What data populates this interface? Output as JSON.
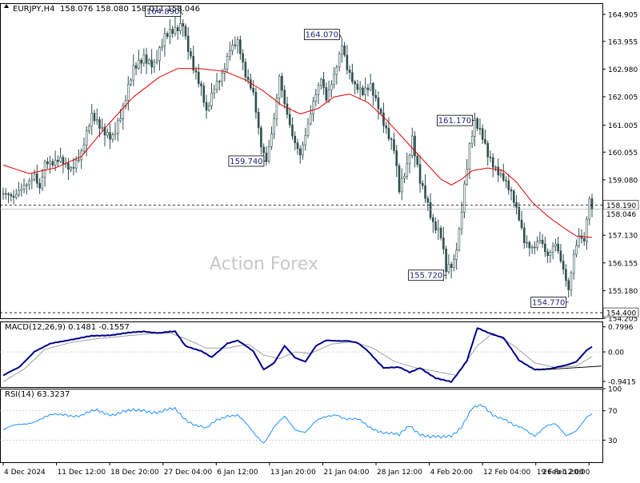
{
  "header": {
    "symbol": "EURJPY,H4",
    "ohlc": "158.076 158.080 158.011 158.046"
  },
  "watermark": "Action Forex",
  "colors": {
    "background": "#ffffff",
    "candle": "#2f4f4f",
    "moving_average": "#e00000",
    "macd_line": "#00008b",
    "macd_signal": "#a0a0a0",
    "rsi_line": "#1e90ff",
    "price_label_bg": "#ffffff",
    "annotation_text": "#1a237e"
  },
  "chart_data": [
    {
      "type": "candlestick",
      "name": "price",
      "y_axis_ticks": [
        "164.905",
        "163.955",
        "162.980",
        "162.005",
        "161.005",
        "160.055",
        "159.080",
        "158.046",
        "157.130",
        "156.155",
        "155.180",
        "154.205"
      ],
      "ylim": [
        154.205,
        165.3
      ],
      "x_ticks": [
        "4 Dec 2024",
        "11 Dec 12:00",
        "18 Dec 20:00",
        "27 Dec 04:00",
        "6 Jan 12:00",
        "13 Jan 20:00",
        "21 Jan 04:00",
        "28 Jan 12:00",
        "4 Feb 20:00",
        "12 Feb 04:00",
        "19 Feb 12:00",
        "26 Feb 20:00"
      ],
      "price_path": [
        [
          0,
          158.6
        ],
        [
          4,
          158.3
        ],
        [
          8,
          158.9
        ],
        [
          12,
          159.4
        ],
        [
          14,
          158.8
        ],
        [
          16,
          159.6
        ],
        [
          19,
          159.5
        ],
        [
          22,
          159.8
        ],
        [
          26,
          159.6
        ],
        [
          30,
          160.0
        ],
        [
          34,
          161.2
        ],
        [
          38,
          160.9
        ],
        [
          42,
          160.7
        ],
        [
          46,
          161.5
        ],
        [
          50,
          162.9
        ],
        [
          54,
          163.5
        ],
        [
          58,
          163.2
        ],
        [
          62,
          164.0
        ],
        [
          66,
          164.3
        ],
        [
          69,
          164.7
        ],
        [
          70,
          164.2
        ],
        [
          73,
          163.1
        ],
        [
          76,
          162.2
        ],
        [
          78,
          161.3
        ],
        [
          81,
          162.3
        ],
        [
          84,
          162.9
        ],
        [
          87,
          163.8
        ],
        [
          90,
          163.9
        ],
        [
          93,
          162.6
        ],
        [
          96,
          162.1
        ],
        [
          99,
          160.4
        ],
        [
          101,
          159.9
        ],
        [
          104,
          161.2
        ],
        [
          106,
          162.6
        ],
        [
          108,
          161.6
        ],
        [
          111,
          160.6
        ],
        [
          114,
          160.1
        ],
        [
          116,
          160.8
        ],
        [
          119,
          161.8
        ],
        [
          122,
          162.5
        ],
        [
          124,
          161.8
        ],
        [
          127,
          162.8
        ],
        [
          130,
          164.0
        ],
        [
          132,
          163.1
        ],
        [
          135,
          162.3
        ],
        [
          138,
          162.0
        ],
        [
          141,
          162.4
        ],
        [
          144,
          161.8
        ],
        [
          147,
          160.9
        ],
        [
          150,
          160.1
        ],
        [
          152,
          158.6
        ],
        [
          155,
          159.5
        ],
        [
          157,
          160.6
        ],
        [
          160,
          159.2
        ],
        [
          162,
          158.6
        ],
        [
          165,
          157.4
        ],
        [
          168,
          157.0
        ],
        [
          170,
          155.9
        ],
        [
          173,
          156.3
        ],
        [
          175,
          157.4
        ],
        [
          177,
          158.9
        ],
        [
          179,
          160.2
        ],
        [
          181,
          161.0
        ],
        [
          184,
          160.5
        ],
        [
          186,
          160.0
        ],
        [
          189,
          159.6
        ],
        [
          192,
          159.2
        ],
        [
          195,
          158.5
        ],
        [
          198,
          157.6
        ],
        [
          200,
          156.9
        ],
        [
          203,
          156.8
        ],
        [
          206,
          157.1
        ],
        [
          209,
          156.3
        ],
        [
          212,
          156.7
        ],
        [
          215,
          155.9
        ],
        [
          217,
          155.3
        ],
        [
          219,
          156.6
        ],
        [
          221,
          157.2
        ],
        [
          223,
          156.9
        ],
        [
          225,
          158.3
        ],
        [
          226,
          158.05
        ]
      ],
      "moving_average_path": [
        [
          0,
          159.6
        ],
        [
          10,
          159.3
        ],
        [
          20,
          159.5
        ],
        [
          30,
          159.9
        ],
        [
          40,
          161.0
        ],
        [
          50,
          162.0
        ],
        [
          60,
          162.7
        ],
        [
          67,
          163.0
        ],
        [
          75,
          163.0
        ],
        [
          85,
          162.9
        ],
        [
          93,
          162.6
        ],
        [
          100,
          162.2
        ],
        [
          107,
          161.7
        ],
        [
          114,
          161.4
        ],
        [
          121,
          161.6
        ],
        [
          127,
          162.0
        ],
        [
          133,
          162.1
        ],
        [
          140,
          161.8
        ],
        [
          147,
          161.2
        ],
        [
          152,
          160.7
        ],
        [
          158,
          160.1
        ],
        [
          163,
          159.6
        ],
        [
          168,
          159.1
        ],
        [
          172,
          158.9
        ],
        [
          176,
          159.1
        ],
        [
          180,
          159.4
        ],
        [
          186,
          159.5
        ],
        [
          192,
          159.4
        ],
        [
          197,
          159.0
        ],
        [
          203,
          158.3
        ],
        [
          209,
          157.8
        ],
        [
          215,
          157.4
        ],
        [
          220,
          157.1
        ],
        [
          226,
          157.05
        ]
      ],
      "annotations": [
        {
          "label": "164.890",
          "index": 69,
          "price": 164.89
        },
        {
          "label": "159.740",
          "index": 101,
          "price": 159.74
        },
        {
          "label": "164.070",
          "index": 130,
          "price": 164.07
        },
        {
          "label": "155.720",
          "index": 170,
          "price": 155.72
        },
        {
          "label": "161.170",
          "index": 181,
          "price": 161.17
        },
        {
          "label": "154.770",
          "index": 217,
          "price": 154.77
        }
      ],
      "horizontal_lines": [
        {
          "label": "158.190",
          "price": 158.19,
          "style": "dashed"
        },
        {
          "label": "154.400",
          "price": 154.4,
          "style": "dashed"
        }
      ],
      "current_price_label": "158.046",
      "current_price": 158.046,
      "bars": 226
    },
    {
      "type": "line",
      "name": "macd",
      "title": "MACD(12,26,9) 0.1481 -0.1557",
      "y_axis_ticks": [
        "0.7996",
        "0.00",
        "-0.9415"
      ],
      "ylim": [
        -1.12,
        0.97
      ],
      "macd_path": [
        [
          0,
          -0.75
        ],
        [
          6,
          -0.5
        ],
        [
          12,
          0.02
        ],
        [
          18,
          0.25
        ],
        [
          26,
          0.4
        ],
        [
          34,
          0.5
        ],
        [
          42,
          0.55
        ],
        [
          48,
          0.6
        ],
        [
          54,
          0.66
        ],
        [
          60,
          0.6
        ],
        [
          66,
          0.65
        ],
        [
          70,
          0.2
        ],
        [
          76,
          0.02
        ],
        [
          80,
          -0.18
        ],
        [
          86,
          0.28
        ],
        [
          90,
          0.36
        ],
        [
          96,
          0.02
        ],
        [
          100,
          -0.55
        ],
        [
          104,
          -0.35
        ],
        [
          108,
          0.18
        ],
        [
          112,
          -0.18
        ],
        [
          116,
          -0.3
        ],
        [
          120,
          0.18
        ],
        [
          124,
          0.36
        ],
        [
          128,
          0.36
        ],
        [
          132,
          0.36
        ],
        [
          136,
          0.28
        ],
        [
          140,
          0.02
        ],
        [
          146,
          -0.5
        ],
        [
          152,
          -0.5
        ],
        [
          156,
          -0.65
        ],
        [
          160,
          -0.5
        ],
        [
          166,
          -0.85
        ],
        [
          172,
          -0.95
        ],
        [
          178,
          -0.28
        ],
        [
          182,
          0.75
        ],
        [
          186,
          0.62
        ],
        [
          192,
          0.46
        ],
        [
          198,
          -0.28
        ],
        [
          204,
          -0.55
        ],
        [
          210,
          -0.55
        ],
        [
          216,
          -0.42
        ],
        [
          220,
          -0.3
        ],
        [
          224,
          0.05
        ],
        [
          226,
          0.15
        ]
      ],
      "signal_path": [
        [
          0,
          -0.95
        ],
        [
          8,
          -0.55
        ],
        [
          16,
          0.08
        ],
        [
          26,
          0.3
        ],
        [
          36,
          0.42
        ],
        [
          46,
          0.5
        ],
        [
          56,
          0.58
        ],
        [
          64,
          0.6
        ],
        [
          70,
          0.42
        ],
        [
          78,
          0.12
        ],
        [
          86,
          0.12
        ],
        [
          94,
          0.25
        ],
        [
          100,
          -0.1
        ],
        [
          106,
          -0.22
        ],
        [
          112,
          0.0
        ],
        [
          118,
          -0.05
        ],
        [
          126,
          0.25
        ],
        [
          134,
          0.32
        ],
        [
          142,
          0.12
        ],
        [
          150,
          -0.3
        ],
        [
          158,
          -0.5
        ],
        [
          166,
          -0.62
        ],
        [
          174,
          -0.75
        ],
        [
          182,
          0.2
        ],
        [
          188,
          0.6
        ],
        [
          196,
          0.2
        ],
        [
          204,
          -0.35
        ],
        [
          212,
          -0.5
        ],
        [
          220,
          -0.45
        ],
        [
          226,
          -0.15
        ]
      ],
      "trendline_path": [
        [
          205,
          -0.58
        ],
        [
          226,
          -0.45
        ]
      ]
    },
    {
      "type": "line",
      "name": "rsi",
      "title": "RSI(14) 63.3237",
      "y_axis_ticks": [
        "100",
        "70",
        "30",
        "0"
      ],
      "ylim": [
        0,
        100
      ],
      "levels": [
        70,
        30
      ],
      "rsi_path": [
        [
          0,
          44
        ],
        [
          6,
          50
        ],
        [
          12,
          57
        ],
        [
          18,
          62
        ],
        [
          24,
          66
        ],
        [
          30,
          63
        ],
        [
          36,
          70
        ],
        [
          42,
          66
        ],
        [
          48,
          68
        ],
        [
          54,
          72
        ],
        [
          60,
          67
        ],
        [
          66,
          72
        ],
        [
          70,
          60
        ],
        [
          74,
          50
        ],
        [
          78,
          44
        ],
        [
          82,
          58
        ],
        [
          86,
          65
        ],
        [
          90,
          63
        ],
        [
          96,
          40
        ],
        [
          100,
          28
        ],
        [
          104,
          48
        ],
        [
          108,
          60
        ],
        [
          112,
          45
        ],
        [
          116,
          43
        ],
        [
          120,
          55
        ],
        [
          124,
          60
        ],
        [
          128,
          66
        ],
        [
          132,
          60
        ],
        [
          136,
          57
        ],
        [
          140,
          48
        ],
        [
          144,
          44
        ],
        [
          148,
          40
        ],
        [
          152,
          35
        ],
        [
          156,
          50
        ],
        [
          160,
          40
        ],
        [
          164,
          34
        ],
        [
          168,
          32
        ],
        [
          172,
          37
        ],
        [
          176,
          50
        ],
        [
          180,
          72
        ],
        [
          184,
          76
        ],
        [
          188,
          66
        ],
        [
          192,
          60
        ],
        [
          196,
          48
        ],
        [
          200,
          45
        ],
        [
          204,
          38
        ],
        [
          208,
          48
        ],
        [
          212,
          50
        ],
        [
          216,
          37
        ],
        [
          220,
          45
        ],
        [
          224,
          60
        ],
        [
          226,
          63
        ]
      ]
    }
  ]
}
